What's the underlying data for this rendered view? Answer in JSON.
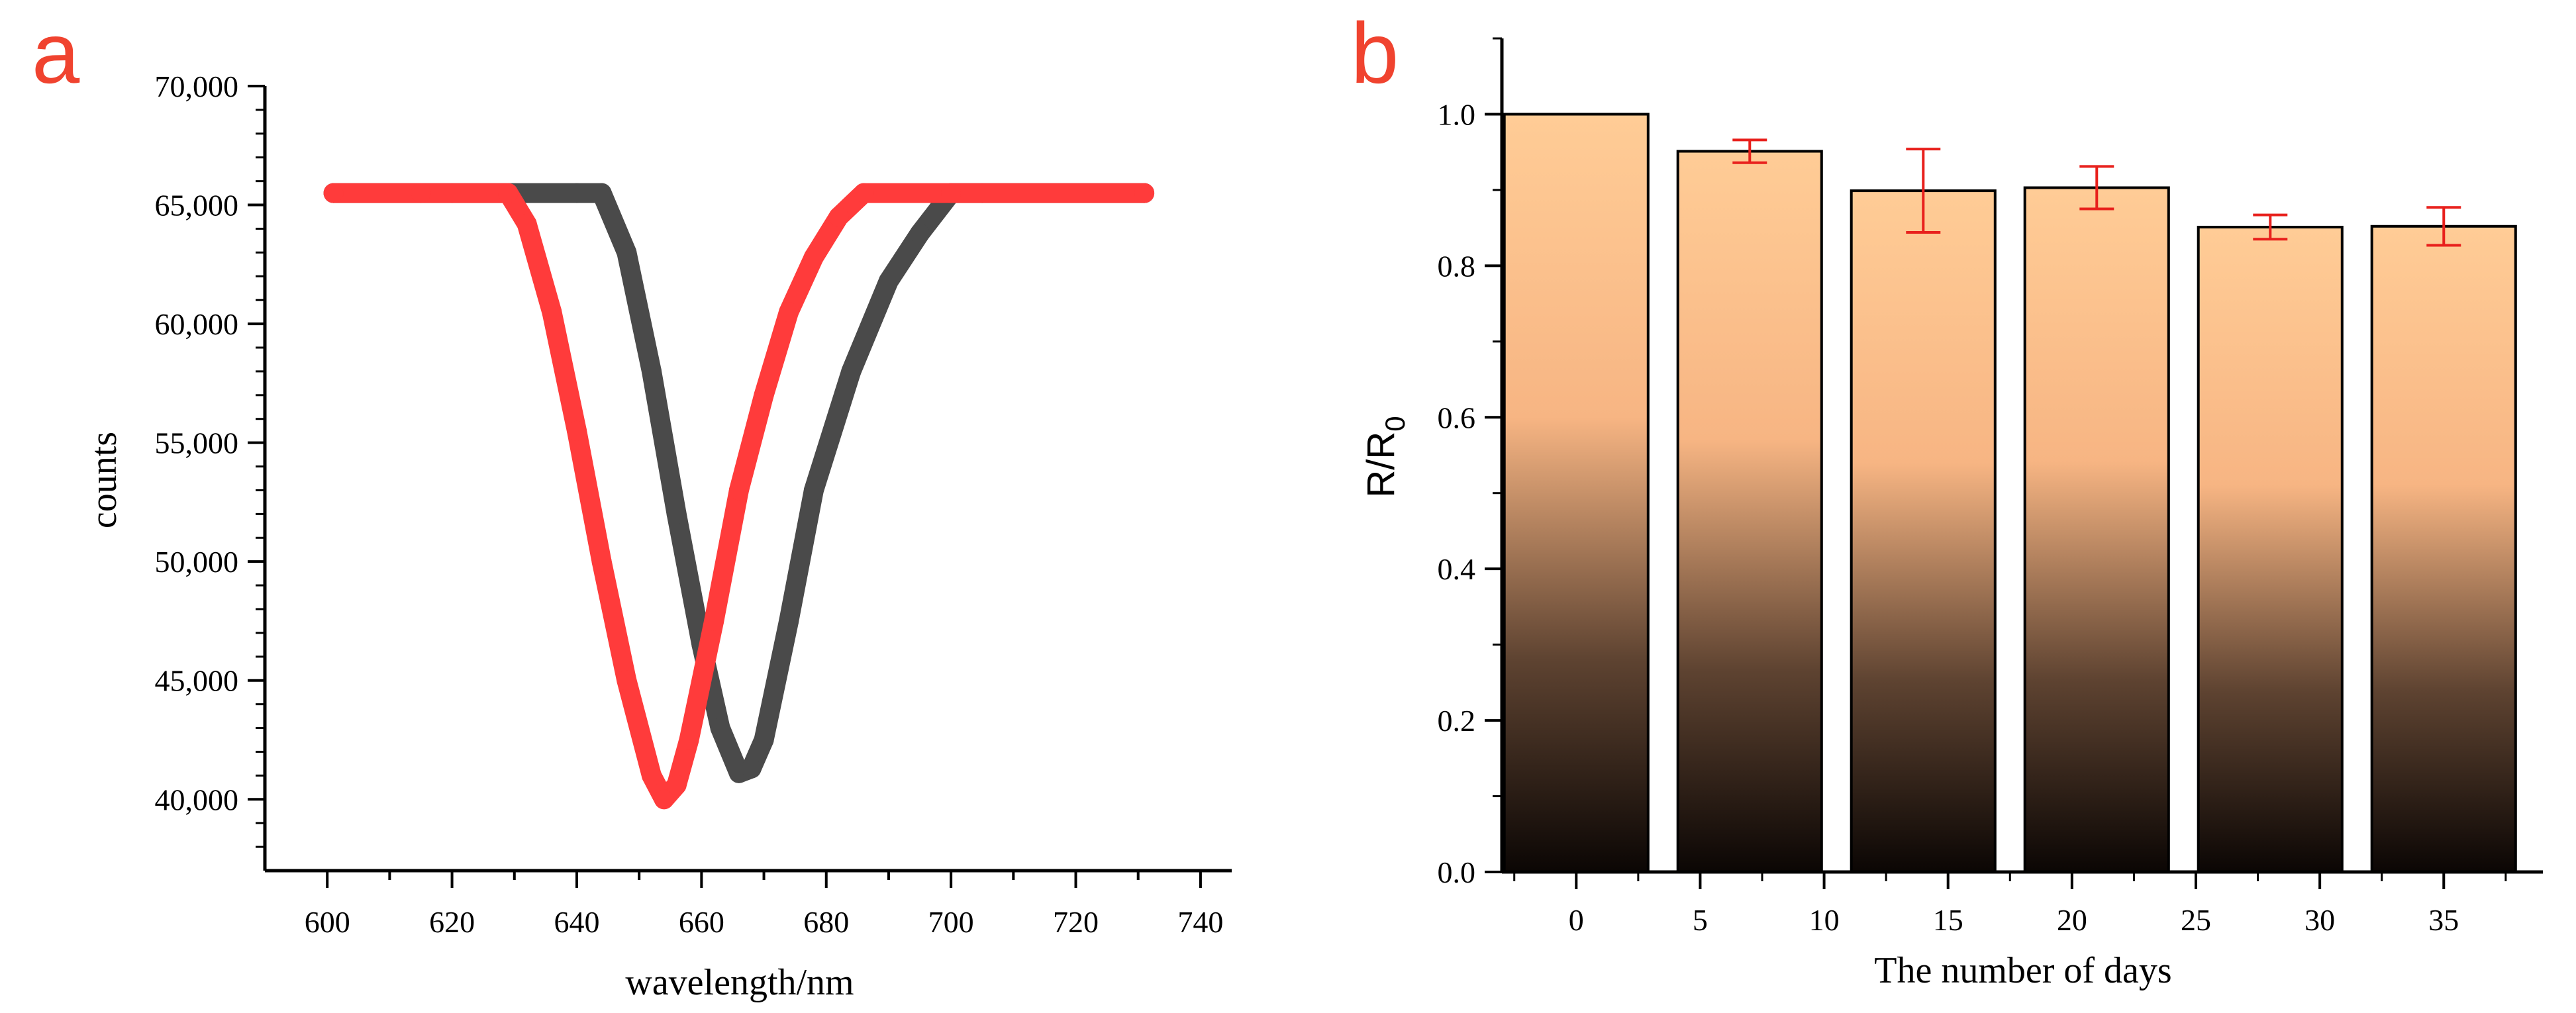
{
  "colors": {
    "panel_letter": "#f0432f",
    "series_dark": "#4a4a4a",
    "series_red": "#ff3b3b",
    "bar_top": "#ffcc96",
    "bar_mid": "#f7b583",
    "bar_bottom": "#0b0604",
    "error_bar": "#e8201c"
  },
  "chart_data": [
    {
      "panel": "a",
      "type": "line",
      "xlabel": "wavelength/nm",
      "ylabel": "counts",
      "xlim": [
        590,
        745
      ],
      "ylim": [
        37000,
        70000
      ],
      "x_ticks": [
        600,
        620,
        640,
        660,
        680,
        700,
        720,
        740
      ],
      "x_tick_labels": [
        "600",
        "620",
        "640",
        "660",
        "680",
        "700",
        "720",
        "740"
      ],
      "y_ticks": [
        40000,
        45000,
        50000,
        55000,
        60000,
        65000,
        70000
      ],
      "y_tick_labels": [
        "40,000",
        "45,000",
        "50,000",
        "55,000",
        "60,000",
        "65,000",
        "70,000"
      ],
      "series": [
        {
          "name": "dark",
          "color": "#4a4a4a",
          "x": [
            601,
            620,
            640,
            644,
            648,
            652,
            656,
            660,
            663,
            666,
            668,
            670,
            674,
            678,
            684,
            690,
            695,
            700,
            705,
            731
          ],
          "y": [
            65500,
            65500,
            65500,
            65500,
            63000,
            58000,
            52000,
            46500,
            43000,
            41100,
            41300,
            42500,
            47500,
            53000,
            58000,
            61800,
            63800,
            65500,
            65500,
            65500
          ]
        },
        {
          "name": "red",
          "color": "#ff3b3b",
          "x": [
            601,
            615,
            629,
            632,
            636,
            640,
            644,
            648,
            652,
            654,
            656,
            658,
            662,
            666,
            670,
            674,
            678,
            682,
            686,
            700,
            731
          ],
          "y": [
            65500,
            65500,
            65500,
            64200,
            60500,
            55500,
            50000,
            45000,
            41000,
            40000,
            40600,
            42500,
            47500,
            53000,
            57000,
            60500,
            62800,
            64500,
            65500,
            65500,
            65500
          ]
        }
      ]
    },
    {
      "panel": "b",
      "type": "bar",
      "xlabel": "The number of days",
      "ylabel": "R/R",
      "ylabel_sub": "0",
      "xlim": [
        -3,
        39
      ],
      "ylim": [
        0,
        1.1
      ],
      "x_ticks": [
        0,
        5,
        10,
        15,
        20,
        25,
        30,
        35
      ],
      "x_tick_labels": [
        "0",
        "5",
        "10",
        "15",
        "20",
        "25",
        "30",
        "35"
      ],
      "y_ticks": [
        0.0,
        0.2,
        0.4,
        0.6,
        0.8,
        1.0
      ],
      "y_tick_labels": [
        "0.0",
        "0.2",
        "0.4",
        "0.6",
        "0.8",
        "1.0"
      ],
      "bar_width": 5.8,
      "bars": [
        {
          "x": 0,
          "value": 1.0,
          "error": 0
        },
        {
          "x": 7,
          "value": 0.951,
          "error": 0.015
        },
        {
          "x": 14,
          "value": 0.899,
          "error": 0.055
        },
        {
          "x": 21,
          "value": 0.903,
          "error": 0.028
        },
        {
          "x": 28,
          "value": 0.851,
          "error": 0.016
        },
        {
          "x": 35,
          "value": 0.852,
          "error": 0.025
        }
      ]
    }
  ],
  "panel_a": {
    "letter": "a"
  },
  "panel_b": {
    "letter": "b"
  }
}
